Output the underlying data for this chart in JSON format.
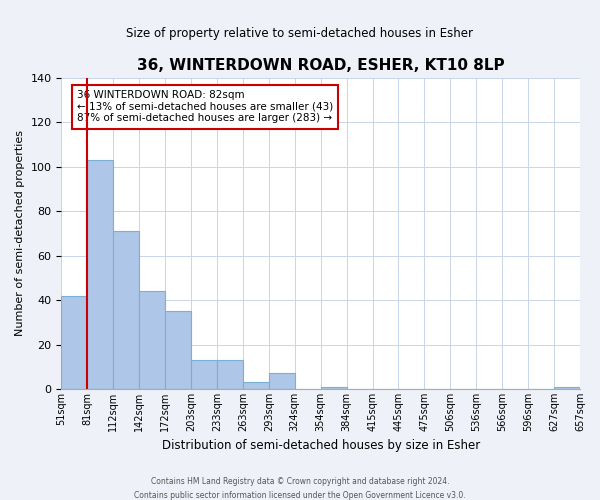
{
  "title": "36, WINTERDOWN ROAD, ESHER, KT10 8LP",
  "subtitle": "Size of property relative to semi-detached houses in Esher",
  "xlabel": "Distribution of semi-detached houses by size in Esher",
  "ylabel": "Number of semi-detached properties",
  "bin_edges": [
    "51sqm",
    "81sqm",
    "112sqm",
    "142sqm",
    "172sqm",
    "203sqm",
    "233sqm",
    "263sqm",
    "293sqm",
    "324sqm",
    "354sqm",
    "384sqm",
    "415sqm",
    "445sqm",
    "475sqm",
    "506sqm",
    "536sqm",
    "566sqm",
    "596sqm",
    "627sqm",
    "657sqm"
  ],
  "bar_values": [
    42,
    103,
    71,
    44,
    35,
    13,
    13,
    3,
    7,
    0,
    1,
    0,
    0,
    0,
    0,
    0,
    0,
    0,
    0,
    1
  ],
  "bar_color": "#aec6e8",
  "bar_edge_color": "#7bafd4",
  "property_line_color": "#cc0000",
  "property_bin_edge": 1,
  "ylim": [
    0,
    140
  ],
  "yticks": [
    0,
    20,
    40,
    60,
    80,
    100,
    120,
    140
  ],
  "annotation_line1": "36 WINTERDOWN ROAD: 82sqm",
  "annotation_line2": "← 13% of semi-detached houses are smaller (43)",
  "annotation_line3": "87% of semi-detached houses are larger (283) →",
  "footer_line1": "Contains HM Land Registry data © Crown copyright and database right 2024.",
  "footer_line2": "Contains public sector information licensed under the Open Government Licence v3.0.",
  "background_color": "#eef2f8",
  "plot_background": "#ffffff"
}
